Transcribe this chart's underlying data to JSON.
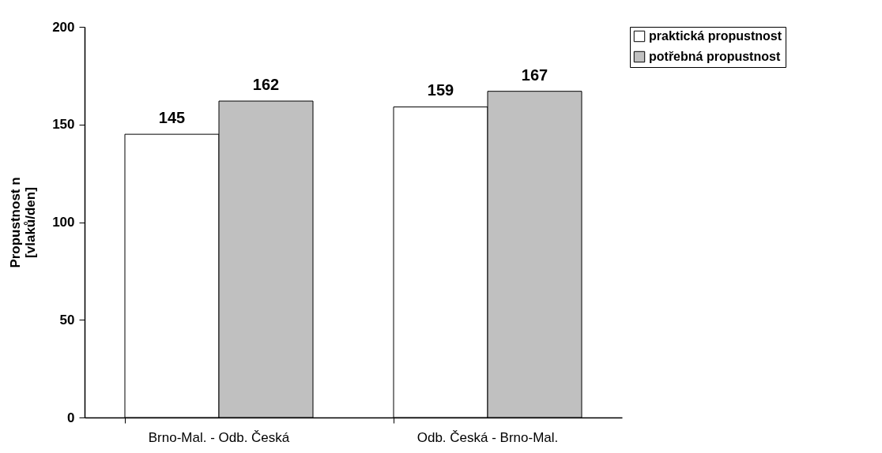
{
  "chart_data": {
    "type": "bar",
    "ylabel": "Propustnost n\n[vlaků/den]",
    "categories": [
      "Brno-Mal. - Odb. Česká",
      "Odb. Česká - Brno-Mal."
    ],
    "series": [
      {
        "name": "praktická propustnost",
        "color": "#ffffff",
        "values": [
          145,
          159
        ]
      },
      {
        "name": "potřebná propustnost",
        "color": "#c0c0c0",
        "values": [
          162,
          167
        ]
      }
    ],
    "ylim": [
      0,
      200
    ],
    "yticks": [
      0,
      50,
      100,
      150,
      200
    ],
    "grid": false,
    "legend": "right",
    "data_labels": true
  }
}
